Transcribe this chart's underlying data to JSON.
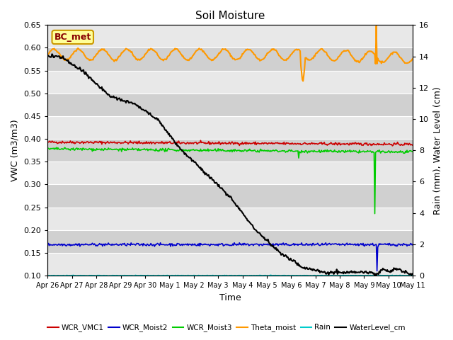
{
  "title": "Soil Moisture",
  "xlabel": "Time",
  "ylabel_left": "VWC (m3/m3)",
  "ylabel_right": "Rain (mm), Water Level (cm)",
  "ylim_left": [
    0.1,
    0.65
  ],
  "ylim_right": [
    0,
    16
  ],
  "yticks_left": [
    0.1,
    0.15,
    0.2,
    0.25,
    0.3,
    0.35,
    0.4,
    0.45,
    0.5,
    0.55,
    0.6,
    0.65
  ],
  "yticks_right": [
    0,
    2,
    4,
    6,
    8,
    10,
    12,
    14,
    16
  ],
  "xtick_labels": [
    "Apr 26",
    "Apr 27",
    "Apr 28",
    "Apr 29",
    "Apr 30",
    "May 1",
    "May 2",
    "May 3",
    "May 4",
    "May 5",
    "May 6",
    "May 7",
    "May 8",
    "May 9",
    "May 10",
    "May 11"
  ],
  "colors": {
    "WCR_VMC1": "#cc0000",
    "WCR_Moist2": "#0000cc",
    "WCR_Moist3": "#00cc00",
    "Theta_moist": "#ff9900",
    "Rain": "#00cccc",
    "WaterLevel_cm": "#000000"
  },
  "band_colors": [
    "#e8e8e8",
    "#d0d0d0"
  ],
  "legend_box_facecolor": "#ffff99",
  "legend_box_edgecolor": "#cc9900",
  "legend_label": "BC_met",
  "title_fontsize": 11,
  "label_fontsize": 9,
  "tick_fontsize": 8
}
